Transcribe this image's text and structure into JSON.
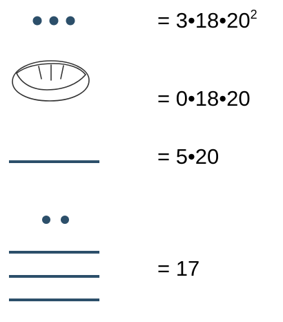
{
  "colors": {
    "glyph": "#2c4f6a",
    "shell_stroke": "#333333",
    "text": "#000000"
  },
  "rows": [
    {
      "glyph": "three-dots",
      "value_base": "= 3•18•20",
      "value_exponent": "2"
    },
    {
      "glyph": "shell",
      "value_base": "= 0•18•20",
      "value_exponent": ""
    },
    {
      "glyph": "one-bar",
      "value_base": "= 5•20",
      "value_exponent": ""
    },
    {
      "glyph": "two-dots-three-bars",
      "value_base": "= 17",
      "value_exponent": ""
    }
  ]
}
